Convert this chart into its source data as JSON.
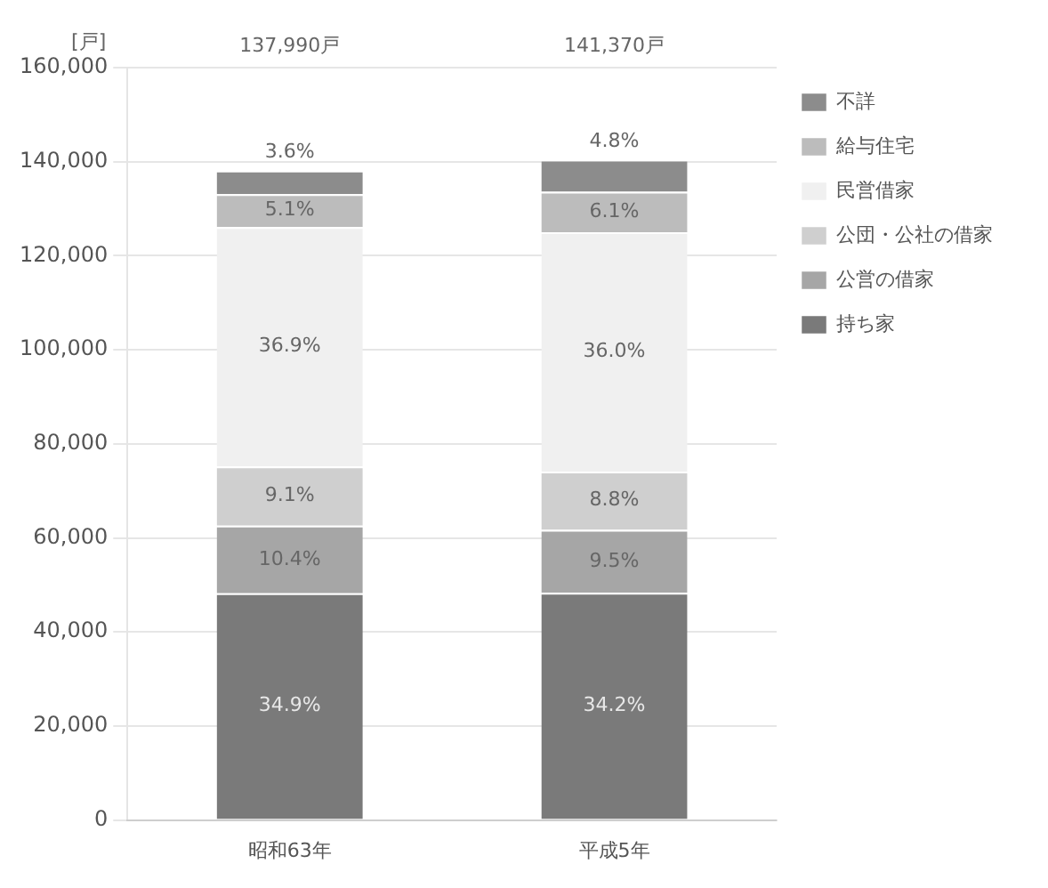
{
  "chart_data": {
    "type": "bar",
    "stacked": true,
    "ylabel": "[戸]",
    "categories": [
      "昭和63年",
      "平成5年"
    ],
    "series": [
      {
        "name": "持ち家",
        "color": "#7a7a7a",
        "values": [
          48200,
          48300
        ]
      },
      {
        "name": "公営の借家",
        "color": "#a6a6a6",
        "values": [
          14400,
          13400
        ]
      },
      {
        "name": "公団・公社の借家",
        "color": "#cfcfcf",
        "values": [
          12600,
          12400
        ]
      },
      {
        "name": "民営借家",
        "color": "#f0f0f0",
        "values": [
          50900,
          50900
        ]
      },
      {
        "name": "給与住宅",
        "color": "#bcbcbc",
        "values": [
          7000,
          8600
        ]
      },
      {
        "name": "不詳",
        "color": "#8c8c8c",
        "values": [
          5000,
          6800
        ]
      }
    ],
    "annotations": [
      "137,990戸",
      "141,370戸",
      "34.9%",
      "34.2%",
      "10.4%",
      "9.5%",
      "9.1%",
      "8.8%",
      "36.9%",
      "36.0%",
      "5.1%",
      "6.1%",
      "3.6%",
      "4.8%"
    ],
    "ylim": [
      0,
      160000
    ],
    "yticks": [
      0,
      {
        "value": 20000,
        "label": "20,000"
      },
      {
        "value": 40000,
        "label": "40,000"
      },
      {
        "value": 60000,
        "label": "60,000"
      },
      {
        "value": 80000,
        "label": "80,000"
      },
      {
        "value": 100000,
        "label": "100,000"
      },
      {
        "value": 120000,
        "label": "120,000"
      },
      {
        "value": 140000,
        "label": "140,000"
      },
      {
        "value": 160000,
        "label": "160,000"
      }
    ],
    "grid": "y",
    "legend": "top right"
  }
}
